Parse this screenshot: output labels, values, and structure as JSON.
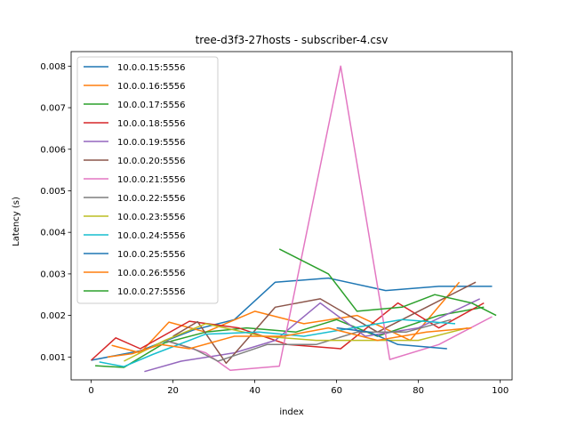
{
  "chart_data": {
    "type": "line",
    "title": "tree-d3f3-27hosts - subscriber-4.csv",
    "xlabel": "index",
    "ylabel": "Latency (s)",
    "xlim": [
      -4.9,
      102.9
    ],
    "ylim": [
      0.00045,
      0.00835
    ],
    "xticks": [
      0,
      20,
      40,
      60,
      80,
      100
    ],
    "yticks": [
      0.001,
      0.002,
      0.003,
      0.004,
      0.005,
      0.006,
      0.007,
      0.008
    ],
    "ytick_labels": [
      "0.001",
      "0.002",
      "0.003",
      "0.004",
      "0.005",
      "0.006",
      "0.007",
      "0.008"
    ],
    "grid": false,
    "legend_position": "upper-left",
    "series": [
      {
        "name": "10.0.0.15:5556",
        "color": "#1f77b4",
        "x": [
          0,
          12,
          25,
          35,
          45,
          58,
          72,
          85,
          98
        ],
        "y": [
          0.00092,
          0.00115,
          0.00165,
          0.0019,
          0.0028,
          0.0029,
          0.0026,
          0.0027,
          0.0027
        ]
      },
      {
        "name": "10.0.0.16:5556",
        "color": "#ff7f0e",
        "x": [
          5,
          12,
          19,
          28,
          40,
          52,
          65,
          78,
          90
        ],
        "y": [
          0.00128,
          0.0011,
          0.00184,
          0.0016,
          0.0021,
          0.0018,
          0.002,
          0.0014,
          0.0028
        ]
      },
      {
        "name": "10.0.0.17:5556",
        "color": "#2ca02c",
        "x": [
          1,
          8,
          18,
          28,
          38,
          50,
          60,
          70,
          85,
          96
        ],
        "y": [
          0.00079,
          0.00075,
          0.00134,
          0.0016,
          0.0017,
          0.0016,
          0.0019,
          0.0015,
          0.002,
          0.0022
        ]
      },
      {
        "name": "10.0.0.18:5556",
        "color": "#d62728",
        "x": [
          0,
          6,
          12,
          24,
          36,
          48,
          61,
          75,
          85,
          96
        ],
        "y": [
          0.00092,
          0.00146,
          0.0012,
          0.00186,
          0.0017,
          0.0013,
          0.0012,
          0.0023,
          0.0017,
          0.0023
        ]
      },
      {
        "name": "10.0.0.19:5556",
        "color": "#9467bd",
        "x": [
          13,
          22,
          35,
          45,
          56,
          67,
          80,
          95
        ],
        "y": [
          0.00065,
          0.0009,
          0.0011,
          0.0014,
          0.0023,
          0.0015,
          0.0017,
          0.0024
        ]
      },
      {
        "name": "10.0.0.20:5556",
        "color": "#8c564b",
        "x": [
          20,
          26,
          33,
          45,
          56,
          70,
          82,
          94
        ],
        "y": [
          0.0015,
          0.00185,
          0.00085,
          0.0022,
          0.0024,
          0.0016,
          0.0022,
          0.0028
        ]
      },
      {
        "name": "10.0.0.21:5556",
        "color": "#e377c2",
        "x": [
          18,
          28,
          34,
          46,
          61,
          73,
          85,
          98
        ],
        "y": [
          0.0014,
          0.0011,
          0.00068,
          0.00078,
          0.008,
          0.00094,
          0.0013,
          0.00197
        ]
      },
      {
        "name": "10.0.0.22:5556",
        "color": "#7f7f7f",
        "x": [
          18,
          25,
          31,
          43,
          55,
          65,
          77,
          88
        ],
        "y": [
          0.0014,
          0.0012,
          0.0009,
          0.0013,
          0.0013,
          0.0016,
          0.0016,
          0.0019
        ]
      },
      {
        "name": "10.0.0.23:5556",
        "color": "#bcbd22",
        "x": [
          8,
          18,
          28,
          42,
          55,
          68,
          80,
          92
        ],
        "y": [
          0.0009,
          0.0014,
          0.0018,
          0.0015,
          0.0014,
          0.0014,
          0.0014,
          0.0017
        ]
      },
      {
        "name": "10.0.0.24:5556",
        "color": "#17becf",
        "x": [
          2,
          8,
          15,
          28,
          41,
          52,
          64,
          76,
          89
        ],
        "y": [
          0.00088,
          0.00077,
          0.00106,
          0.00155,
          0.0016,
          0.0015,
          0.0017,
          0.0019,
          0.0018
        ]
      },
      {
        "name": "10.0.0.25:5556",
        "color": "#1f77b4",
        "x": [
          60,
          68,
          75,
          87
        ],
        "y": [
          0.0017,
          0.0016,
          0.0013,
          0.0012
        ]
      },
      {
        "name": "10.0.0.26:5556",
        "color": "#ff7f0e",
        "x": [
          4,
          10,
          17,
          24,
          35,
          47,
          58,
          70,
          82,
          93
        ],
        "y": [
          0.001,
          0.00108,
          0.0013,
          0.0012,
          0.0015,
          0.0015,
          0.0017,
          0.0014,
          0.0016,
          0.0017
        ]
      },
      {
        "name": "10.0.0.27:5556",
        "color": "#2ca02c",
        "x": [
          46,
          58,
          65,
          76,
          84,
          93,
          99
        ],
        "y": [
          0.0036,
          0.003,
          0.0021,
          0.0022,
          0.0025,
          0.0023,
          0.002
        ]
      }
    ]
  }
}
